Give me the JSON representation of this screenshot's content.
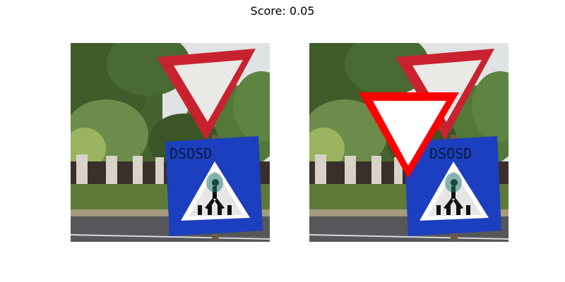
{
  "figure": {
    "title": "Score: 0.05"
  },
  "panels": [
    {
      "name": "original-photo",
      "content": "yield-sign-and-pedestrian-crossing-sign",
      "graffiti_text": "DSOSD"
    },
    {
      "name": "photo-with-overlay",
      "content": "yield-sign-and-pedestrian-crossing-sign",
      "graffiti_text": "DSOSD",
      "overlay": "red-white-inverted-triangle"
    }
  ],
  "colors": {
    "sign_red": "#d0212f",
    "overlay_red": "#ff0000",
    "sign_blue": "#1b3fbf",
    "foliage_dark": "#3c5a2a",
    "sky": "#e3e6e8"
  }
}
